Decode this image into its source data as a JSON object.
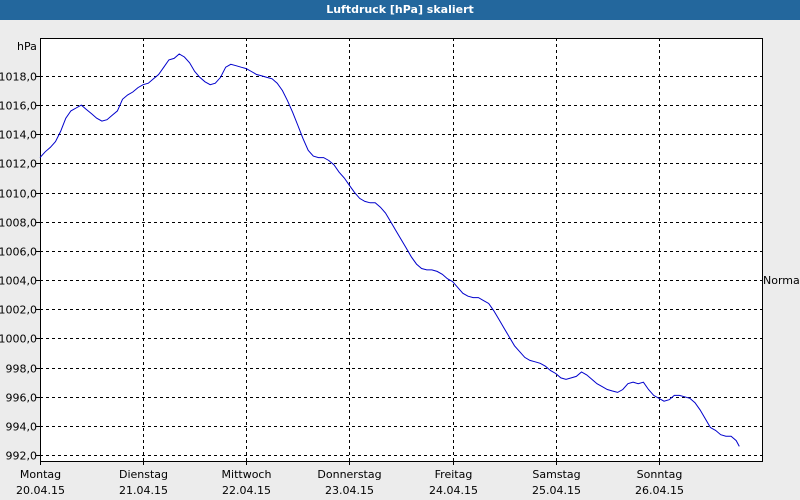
{
  "window": {
    "title": "Luftdruck [hPa] skaliert"
  },
  "chart_data": {
    "type": "line",
    "title": "Luftdruck [hPa] skaliert",
    "ylabel": "hPa",
    "right_label": "Normal",
    "xlim": [
      0,
      7
    ],
    "ylim": [
      991.6,
      1020.6
    ],
    "yticks": [
      992,
      994,
      996,
      998,
      1000,
      1002,
      1004,
      1006,
      1008,
      1010,
      1012,
      1014,
      1016,
      1018
    ],
    "ytick_labels": [
      "992,0",
      "994,0",
      "996,0",
      "998,0",
      "1000,0",
      "1002,0",
      "1004,0",
      "1006,0",
      "1008,0",
      "1010,0",
      "1012,0",
      "1014,0",
      "1016,0",
      "1018,0"
    ],
    "x_categories": [
      {
        "day": "Montag",
        "date": "20.04.15"
      },
      {
        "day": "Dienstag",
        "date": "21.04.15"
      },
      {
        "day": "Mittwoch",
        "date": "22.04.15"
      },
      {
        "day": "Donnerstag",
        "date": "23.04.15"
      },
      {
        "day": "Freitag",
        "date": "24.04.15"
      },
      {
        "day": "Samstag",
        "date": "25.04.15"
      },
      {
        "day": "Sonntag",
        "date": "26.04.15"
      }
    ],
    "grid": true,
    "line_color": "#0000cc",
    "series": [
      {
        "points": [
          [
            0.0,
            1012.4
          ],
          [
            0.05,
            1012.8
          ],
          [
            0.1,
            1013.1
          ],
          [
            0.15,
            1013.5
          ],
          [
            0.2,
            1014.2
          ],
          [
            0.25,
            1015.1
          ],
          [
            0.3,
            1015.6
          ],
          [
            0.35,
            1015.8
          ],
          [
            0.4,
            1016.0
          ],
          [
            0.45,
            1015.7
          ],
          [
            0.5,
            1015.4
          ],
          [
            0.55,
            1015.1
          ],
          [
            0.6,
            1014.9
          ],
          [
            0.65,
            1015.0
          ],
          [
            0.7,
            1015.3
          ],
          [
            0.75,
            1015.6
          ],
          [
            0.8,
            1016.4
          ],
          [
            0.85,
            1016.7
          ],
          [
            0.9,
            1016.9
          ],
          [
            0.95,
            1017.2
          ],
          [
            1.0,
            1017.4
          ],
          [
            1.05,
            1017.5
          ],
          [
            1.1,
            1017.8
          ],
          [
            1.15,
            1018.1
          ],
          [
            1.2,
            1018.6
          ],
          [
            1.25,
            1019.1
          ],
          [
            1.3,
            1019.2
          ],
          [
            1.35,
            1019.5
          ],
          [
            1.4,
            1019.3
          ],
          [
            1.45,
            1018.9
          ],
          [
            1.5,
            1018.3
          ],
          [
            1.55,
            1017.9
          ],
          [
            1.6,
            1017.6
          ],
          [
            1.65,
            1017.4
          ],
          [
            1.7,
            1017.5
          ],
          [
            1.75,
            1017.9
          ],
          [
            1.8,
            1018.6
          ],
          [
            1.85,
            1018.8
          ],
          [
            1.9,
            1018.7
          ],
          [
            1.95,
            1018.6
          ],
          [
            2.0,
            1018.5
          ],
          [
            2.05,
            1018.3
          ],
          [
            2.1,
            1018.1
          ],
          [
            2.15,
            1018.0
          ],
          [
            2.2,
            1017.9
          ],
          [
            2.25,
            1017.8
          ],
          [
            2.3,
            1017.5
          ],
          [
            2.35,
            1017.0
          ],
          [
            2.4,
            1016.3
          ],
          [
            2.45,
            1015.5
          ],
          [
            2.5,
            1014.6
          ],
          [
            2.55,
            1013.7
          ],
          [
            2.6,
            1012.9
          ],
          [
            2.65,
            1012.5
          ],
          [
            2.7,
            1012.4
          ],
          [
            2.75,
            1012.4
          ],
          [
            2.8,
            1012.2
          ],
          [
            2.85,
            1011.9
          ],
          [
            2.9,
            1011.4
          ],
          [
            2.95,
            1011.0
          ],
          [
            3.0,
            1010.5
          ],
          [
            3.05,
            1010.0
          ],
          [
            3.1,
            1009.6
          ],
          [
            3.15,
            1009.4
          ],
          [
            3.2,
            1009.3
          ],
          [
            3.25,
            1009.3
          ],
          [
            3.3,
            1009.0
          ],
          [
            3.35,
            1008.6
          ],
          [
            3.4,
            1008.0
          ],
          [
            3.45,
            1007.4
          ],
          [
            3.5,
            1006.8
          ],
          [
            3.55,
            1006.2
          ],
          [
            3.6,
            1005.6
          ],
          [
            3.65,
            1005.1
          ],
          [
            3.7,
            1004.8
          ],
          [
            3.75,
            1004.7
          ],
          [
            3.8,
            1004.7
          ],
          [
            3.85,
            1004.6
          ],
          [
            3.9,
            1004.4
          ],
          [
            3.95,
            1004.1
          ],
          [
            4.0,
            1003.9
          ],
          [
            4.05,
            1003.5
          ],
          [
            4.1,
            1003.1
          ],
          [
            4.15,
            1002.9
          ],
          [
            4.2,
            1002.8
          ],
          [
            4.25,
            1002.8
          ],
          [
            4.3,
            1002.6
          ],
          [
            4.35,
            1002.4
          ],
          [
            4.4,
            1001.9
          ],
          [
            4.45,
            1001.3
          ],
          [
            4.5,
            1000.7
          ],
          [
            4.55,
            1000.1
          ],
          [
            4.6,
            999.5
          ],
          [
            4.65,
            999.1
          ],
          [
            4.7,
            998.7
          ],
          [
            4.75,
            998.5
          ],
          [
            4.8,
            998.4
          ],
          [
            4.85,
            998.3
          ],
          [
            4.9,
            998.1
          ],
          [
            4.95,
            997.8
          ],
          [
            5.0,
            997.6
          ],
          [
            5.05,
            997.3
          ],
          [
            5.1,
            997.2
          ],
          [
            5.15,
            997.3
          ],
          [
            5.2,
            997.4
          ],
          [
            5.25,
            997.7
          ],
          [
            5.3,
            997.5
          ],
          [
            5.35,
            997.2
          ],
          [
            5.4,
            996.9
          ],
          [
            5.45,
            996.7
          ],
          [
            5.5,
            996.5
          ],
          [
            5.55,
            996.4
          ],
          [
            5.6,
            996.3
          ],
          [
            5.65,
            996.5
          ],
          [
            5.7,
            996.9
          ],
          [
            5.75,
            997.0
          ],
          [
            5.8,
            996.9
          ],
          [
            5.85,
            997.0
          ],
          [
            5.9,
            996.5
          ],
          [
            5.95,
            996.1
          ],
          [
            6.0,
            995.9
          ],
          [
            6.05,
            995.7
          ],
          [
            6.1,
            995.8
          ],
          [
            6.15,
            996.1
          ],
          [
            6.2,
            996.1
          ],
          [
            6.25,
            996.0
          ],
          [
            6.3,
            995.9
          ],
          [
            6.35,
            995.6
          ],
          [
            6.4,
            995.1
          ],
          [
            6.45,
            994.5
          ],
          [
            6.5,
            993.9
          ],
          [
            6.55,
            993.7
          ],
          [
            6.6,
            993.4
          ],
          [
            6.65,
            993.3
          ],
          [
            6.7,
            993.3
          ],
          [
            6.75,
            993.0
          ],
          [
            6.78,
            992.6
          ]
        ]
      }
    ]
  }
}
